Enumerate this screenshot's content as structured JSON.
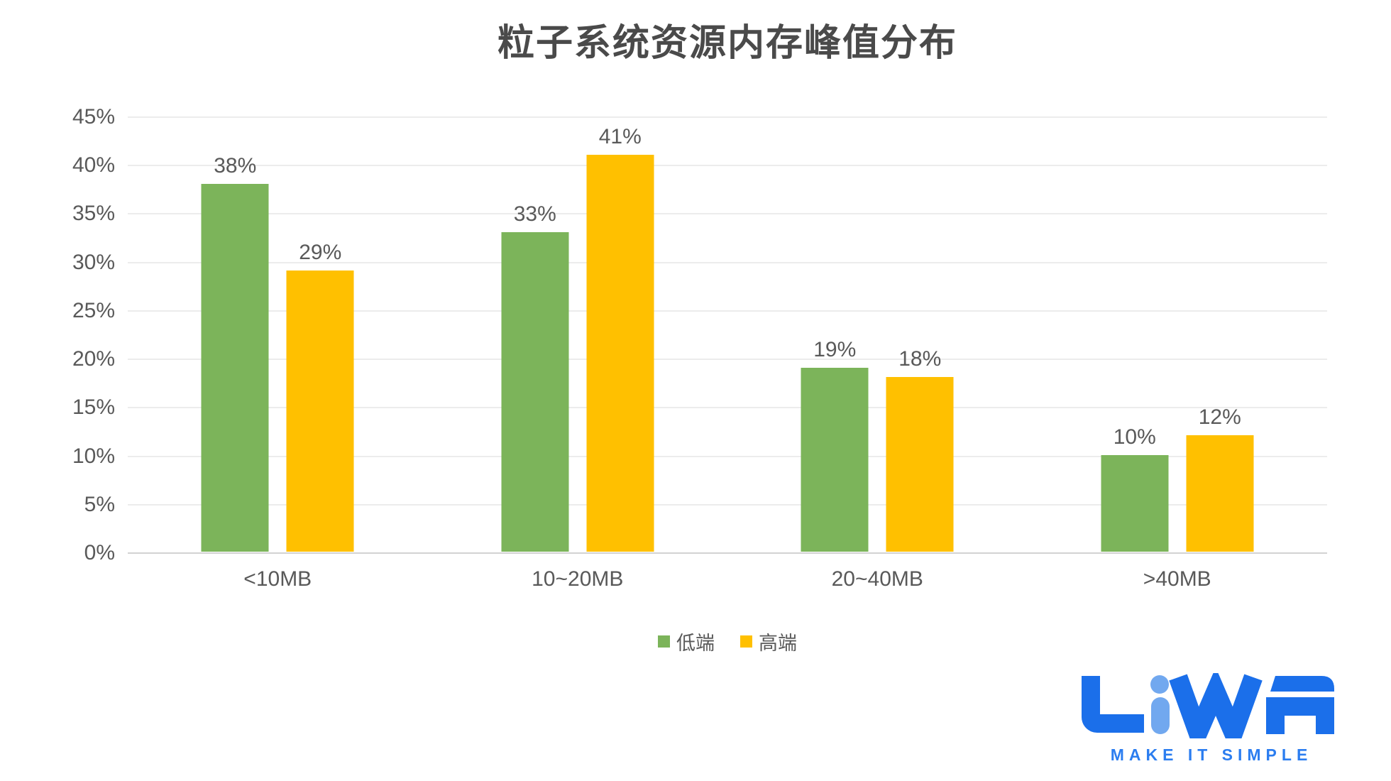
{
  "chart_data": {
    "type": "bar",
    "title": "粒子系统资源内存峰值分布",
    "categories": [
      "<10MB",
      "10~20MB",
      "20~40MB",
      ">40MB"
    ],
    "series": [
      {
        "name": "低端",
        "color": "#7cb45a",
        "values": [
          38,
          33,
          19,
          10
        ]
      },
      {
        "name": "高端",
        "color": "#ffc000",
        "values": [
          29,
          41,
          18,
          12
        ]
      }
    ],
    "data_label_suffix": "%",
    "ylim": [
      0,
      45
    ],
    "y_axis": {
      "min": 0,
      "max": 45,
      "step": 5,
      "tick_labels": [
        "0%",
        "5%",
        "10%",
        "15%",
        "20%",
        "25%",
        "30%",
        "35%",
        "40%",
        "45%"
      ]
    },
    "xlabel": "",
    "ylabel": "",
    "grid": true,
    "legend_position": "bottom"
  },
  "logo": {
    "brand": "LiWA",
    "tagline": "MAKE IT SIMPLE",
    "color_primary": "#1b6fea",
    "color_accent": "#71a8ef",
    "color_tagline": "#2b7df0"
  }
}
